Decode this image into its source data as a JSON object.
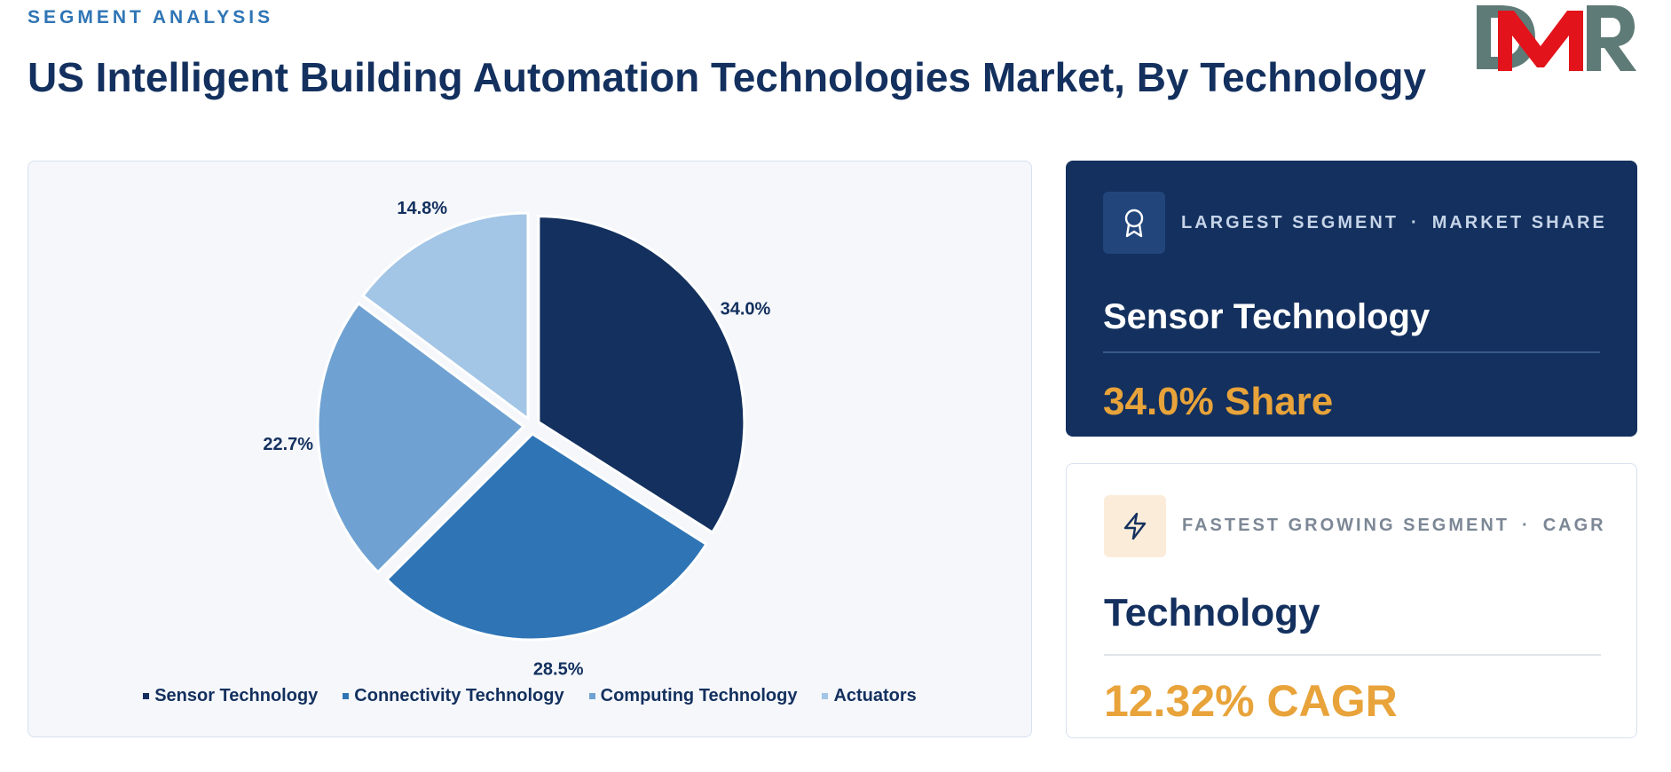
{
  "header": {
    "eyebrow": "SEGMENT ANALYSIS",
    "title": "US Intelligent Building Automation Technologies Market, By Technology",
    "logo_text": "DMR"
  },
  "colors": {
    "navy": "#13305e",
    "accent_blue": "#2f75b5",
    "orange": "#e8a33a",
    "logo_gray": "#5f7b77",
    "logo_red": "#e3131b"
  },
  "chart_data": {
    "type": "pie",
    "categories": [
      "Sensor Technology",
      "Connectivity Technology",
      "Computing Technology",
      "Actuators"
    ],
    "values": [
      34.0,
      28.5,
      22.7,
      14.8
    ],
    "data_labels": [
      "34.0%",
      "28.5%",
      "22.7%",
      "14.8%"
    ],
    "colors": [
      "#13305e",
      "#2f75b5",
      "#6fa2d2",
      "#a3c5e6"
    ],
    "start_angle": "12 o'clock",
    "direction": "clockwise",
    "exploded": true,
    "legend_position": "bottom"
  },
  "cards": {
    "largest": {
      "icon": "award-icon",
      "label_left": "LARGEST SEGMENT",
      "separator": "·",
      "label_right": "MARKET SHARE",
      "name": "Sensor Technology",
      "metric": "34.0% Share"
    },
    "fastest": {
      "icon": "lightning-icon",
      "label_left": "FASTEST GROWING SEGMENT",
      "separator": "·",
      "label_right": "CAGR",
      "name": "Technology",
      "metric": "12.32% CAGR"
    }
  }
}
